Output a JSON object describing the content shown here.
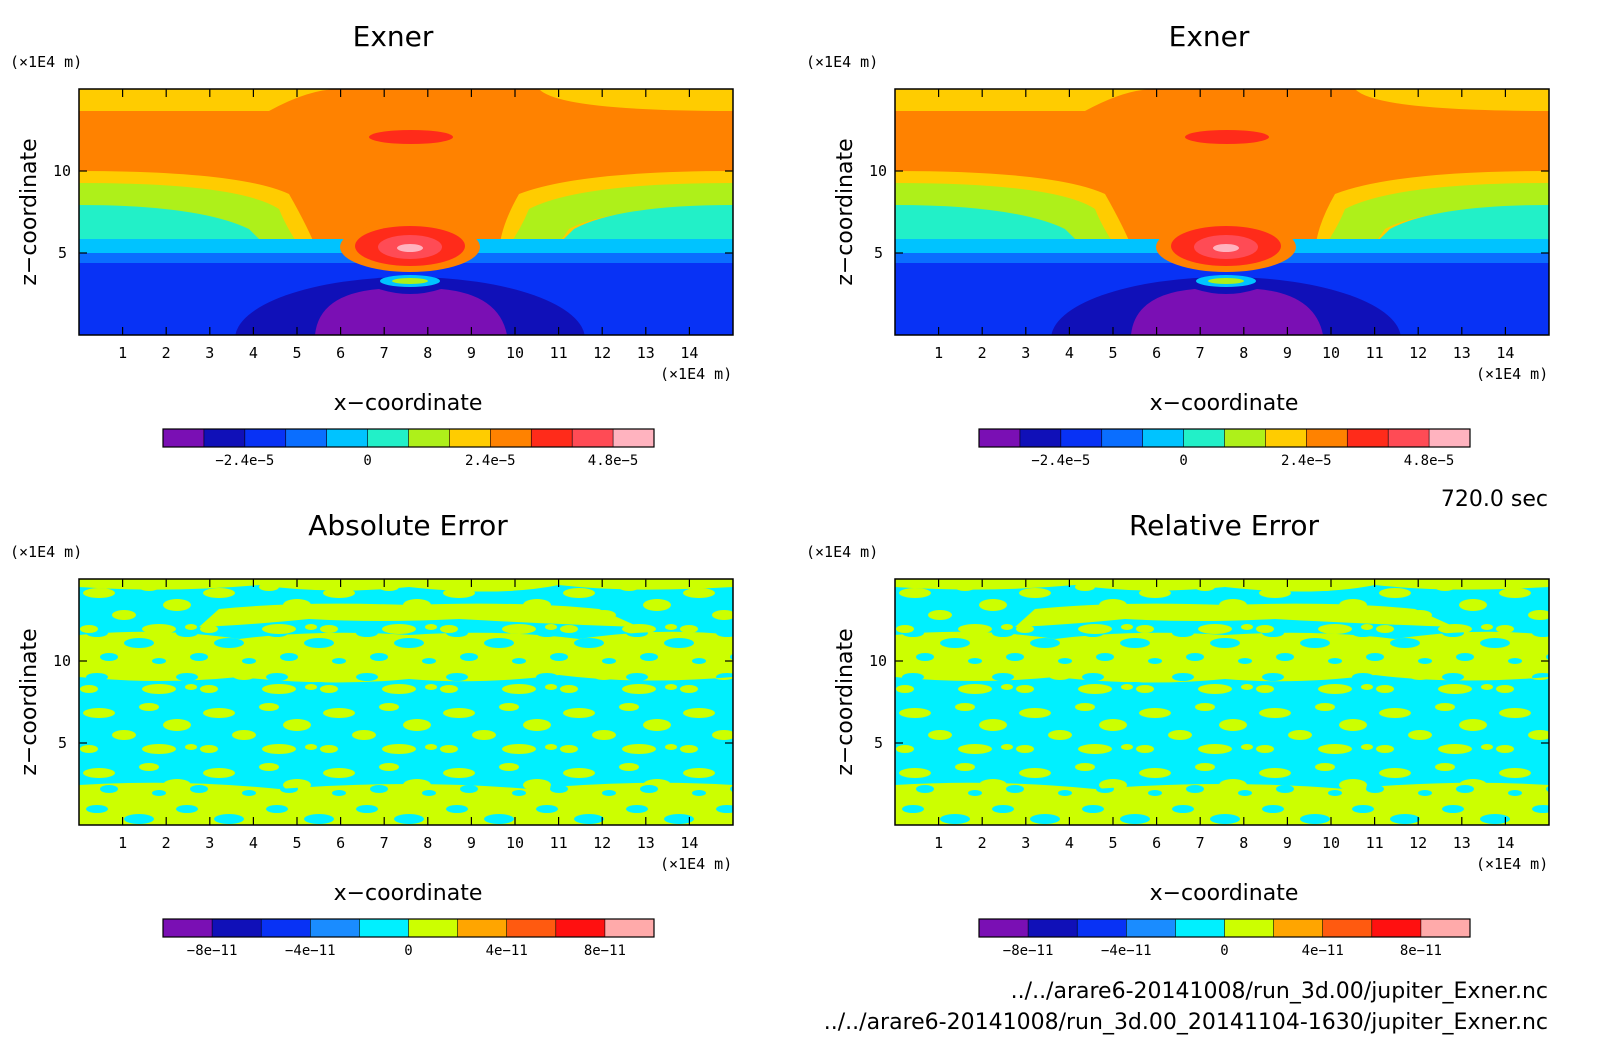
{
  "time_label": "720.0 sec",
  "files": [
    "../../arare6-20141008/run_3d.00/jupiter_Exner.nc",
    "../../arare6-20141008/run_3d.00_20141104-1630/jupiter_Exner.nc"
  ],
  "chart_data": [
    {
      "type": "heatmap",
      "title": "Exner",
      "xlabel": "x−coordinate",
      "ylabel": "z−coordinate",
      "x_unit": "(×1E4 m)",
      "y_unit": "(×1E4 m)",
      "xlim": [
        0,
        15
      ],
      "ylim": [
        0,
        15
      ],
      "x_ticks": [
        "1",
        "2",
        "3",
        "4",
        "5",
        "6",
        "7",
        "8",
        "9",
        "10",
        "11",
        "12",
        "13",
        "14"
      ],
      "y_ticks": [
        "5",
        "10"
      ],
      "colorbar": {
        "colors": [
          "#7a0fb4",
          "#1010b8",
          "#0832f5",
          "#0a6eff",
          "#00c3ff",
          "#22f0c8",
          "#aef01a",
          "#ffcc00",
          "#ff8200",
          "#ff2b1a",
          "#ff4b55",
          "#ffb3bf"
        ],
        "tick_labels": [
          "−2.4e−5",
          "0",
          "2.4e−5",
          "4.8e−5"
        ]
      }
    },
    {
      "type": "heatmap",
      "title": "Exner",
      "xlabel": "x−coordinate",
      "ylabel": "z−coordinate",
      "x_unit": "(×1E4 m)",
      "y_unit": "(×1E4 m)",
      "xlim": [
        0,
        15
      ],
      "ylim": [
        0,
        15
      ],
      "x_ticks": [
        "1",
        "2",
        "3",
        "4",
        "5",
        "6",
        "7",
        "8",
        "9",
        "10",
        "11",
        "12",
        "13",
        "14"
      ],
      "y_ticks": [
        "5",
        "10"
      ],
      "colorbar": {
        "colors": [
          "#7a0fb4",
          "#1010b8",
          "#0832f5",
          "#0a6eff",
          "#00c3ff",
          "#22f0c8",
          "#aef01a",
          "#ffcc00",
          "#ff8200",
          "#ff2b1a",
          "#ff4b55",
          "#ffb3bf"
        ],
        "tick_labels": [
          "−2.4e−5",
          "0",
          "2.4e−5",
          "4.8e−5"
        ]
      }
    },
    {
      "type": "heatmap",
      "title": "Absolute Error",
      "xlabel": "x−coordinate",
      "ylabel": "z−coordinate",
      "x_unit": "(×1E4 m)",
      "y_unit": "(×1E4 m)",
      "xlim": [
        0,
        15
      ],
      "ylim": [
        0,
        15
      ],
      "x_ticks": [
        "1",
        "2",
        "3",
        "4",
        "5",
        "6",
        "7",
        "8",
        "9",
        "10",
        "11",
        "12",
        "13",
        "14"
      ],
      "y_ticks": [
        "5",
        "10"
      ],
      "colorbar": {
        "colors": [
          "#7a0fb4",
          "#1010b8",
          "#0832f5",
          "#1a8cff",
          "#00f0ff",
          "#ccff00",
          "#ffa500",
          "#ff5a10",
          "#ff1010",
          "#ffaaaa"
        ],
        "tick_labels": [
          "−8e−11",
          "−4e−11",
          "0",
          "4e−11",
          "8e−11"
        ]
      }
    },
    {
      "type": "heatmap",
      "title": "Relative Error",
      "xlabel": "x−coordinate",
      "ylabel": "z−coordinate",
      "x_unit": "(×1E4 m)",
      "y_unit": "(×1E4 m)",
      "xlim": [
        0,
        15
      ],
      "ylim": [
        0,
        15
      ],
      "x_ticks": [
        "1",
        "2",
        "3",
        "4",
        "5",
        "6",
        "7",
        "8",
        "9",
        "10",
        "11",
        "12",
        "13",
        "14"
      ],
      "y_ticks": [
        "5",
        "10"
      ],
      "colorbar": {
        "colors": [
          "#7a0fb4",
          "#1010b8",
          "#0832f5",
          "#1a8cff",
          "#00f0ff",
          "#ccff00",
          "#ffa500",
          "#ff5a10",
          "#ff1010",
          "#ffaaaa"
        ],
        "tick_labels": [
          "−8e−11",
          "−4e−11",
          "0",
          "4e−11",
          "8e−11"
        ]
      }
    }
  ]
}
